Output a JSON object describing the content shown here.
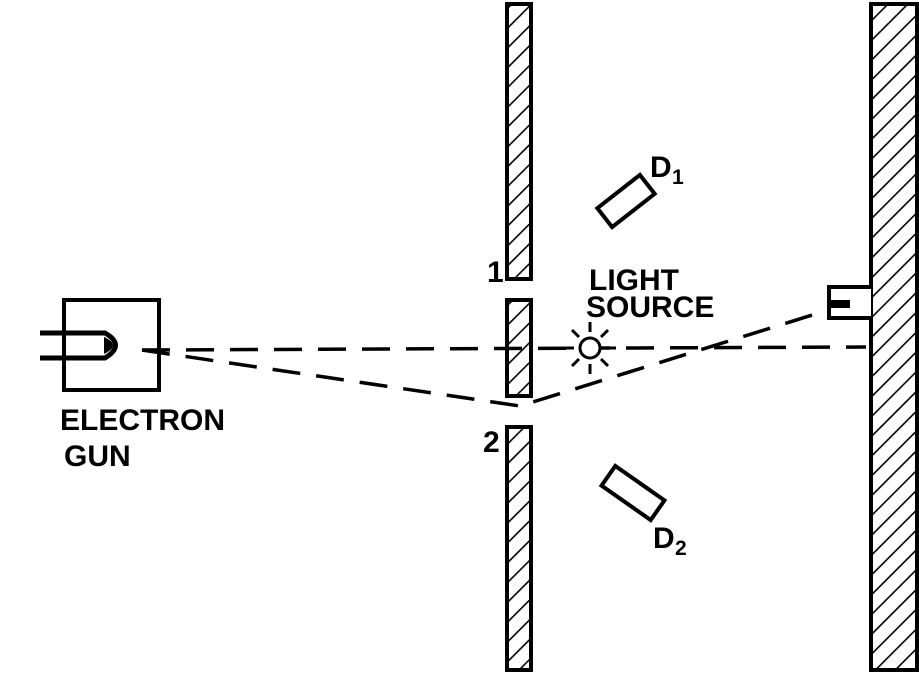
{
  "labels": {
    "electron_gun_line1": "ELECTRON",
    "electron_gun_line2": "GUN",
    "light_source_line1": "LIGHT",
    "light_source_line2": "SOURCE",
    "slit_1": "1",
    "slit_2": "2",
    "detector_1": "D",
    "detector_1_subscript": "1",
    "detector_2": "D",
    "detector_2_subscript": "2"
  },
  "colors": {
    "ink": "#000000",
    "background": "#ffffff"
  }
}
